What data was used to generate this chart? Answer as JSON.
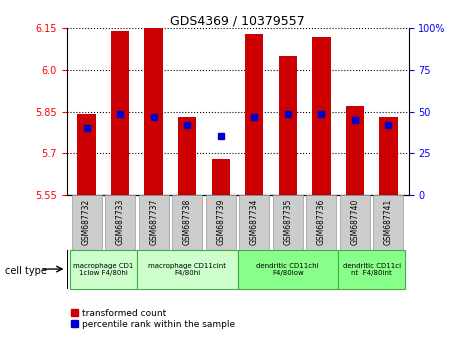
{
  "title": "GDS4369 / 10379557",
  "samples": [
    "GSM687732",
    "GSM687733",
    "GSM687737",
    "GSM687738",
    "GSM687739",
    "GSM687734",
    "GSM687735",
    "GSM687736",
    "GSM687740",
    "GSM687741"
  ],
  "red_values": [
    5.84,
    6.14,
    6.15,
    5.83,
    5.68,
    6.13,
    6.05,
    6.12,
    5.87,
    5.83
  ],
  "blue_values": [
    5.79,
    5.84,
    5.83,
    5.8,
    5.76,
    5.83,
    5.84,
    5.84,
    5.82,
    5.8
  ],
  "ylim_left": [
    5.55,
    6.15
  ],
  "ylim_right": [
    0,
    100
  ],
  "yticks_left": [
    5.55,
    5.7,
    5.85,
    6.0,
    6.15
  ],
  "yticks_right": [
    0,
    25,
    50,
    75,
    100
  ],
  "red_color": "#cc0000",
  "blue_color": "#0000cc",
  "bar_width": 0.55,
  "cell_type_groups": [
    {
      "label": "macrophage CD1\n1clow F4/80hi",
      "start": 0,
      "end": 2,
      "color": "#ccffcc"
    },
    {
      "label": "macrophage CD11cint\nF4/80hi",
      "start": 2,
      "end": 5,
      "color": "#ccffcc"
    },
    {
      "label": "dendritic CD11chi\nF4/80low",
      "start": 5,
      "end": 8,
      "color": "#88ff88"
    },
    {
      "label": "dendritic CD11ci\nnt  F4/80int",
      "start": 8,
      "end": 10,
      "color": "#88ff88"
    }
  ],
  "legend_red_label": "transformed count",
  "legend_blue_label": "percentile rank within the sample",
  "cell_type_label": "cell type"
}
